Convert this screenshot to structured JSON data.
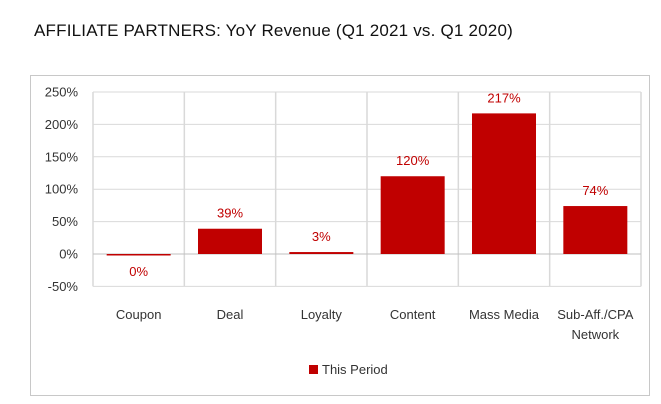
{
  "title": "AFFILIATE PARTNERS:  YoY Revenue (Q1 2021 vs. Q1 2020)",
  "chart_data": {
    "type": "bar",
    "categories": [
      "Coupon",
      "Deal",
      "Loyalty",
      "Content",
      "Mass Media",
      "Sub-Aff./CPA Network"
    ],
    "category_lines": [
      [
        "Coupon"
      ],
      [
        "Deal"
      ],
      [
        "Loyalty"
      ],
      [
        "Content"
      ],
      [
        "Mass Media"
      ],
      [
        "Sub-Aff./CPA",
        "Network"
      ]
    ],
    "series": [
      {
        "name": "This Period",
        "values": [
          0,
          39,
          3,
          120,
          217,
          74
        ],
        "color": "#c00000"
      }
    ],
    "data_labels": [
      "0%",
      "39%",
      "3%",
      "120%",
      "217%",
      "74%"
    ],
    "yticks": [
      250,
      200,
      150,
      100,
      50,
      0,
      -50
    ],
    "ytick_labels": [
      "250%",
      "200%",
      "150%",
      "100%",
      "50%",
      "0%",
      "-50%"
    ],
    "ylim": [
      -50,
      250
    ],
    "grid": true,
    "legend": "bottom",
    "xlabel": "",
    "ylabel": ""
  }
}
